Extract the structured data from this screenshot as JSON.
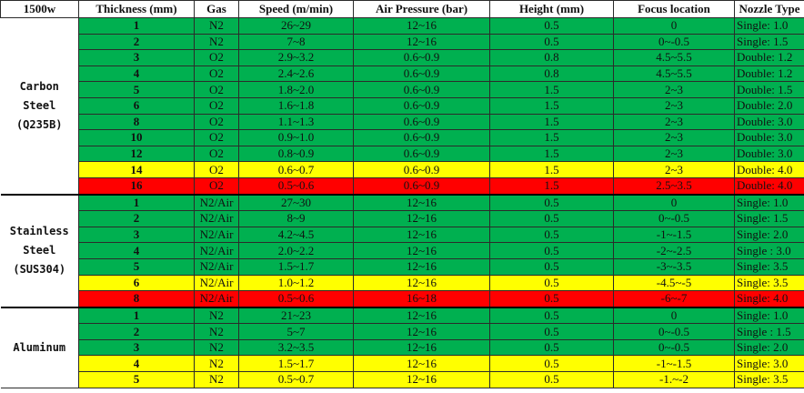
{
  "colors": {
    "green": "#00B050",
    "yellow": "#FFFF00",
    "red": "#FF0000"
  },
  "headers": [
    "1500w",
    "Thickness (mm)",
    "Gas",
    "Speed (m/min)",
    "Air Pressure (bar)",
    "Height (mm)",
    "Focus location",
    "Nozzle Type"
  ],
  "groups": [
    {
      "material": [
        "Carbon",
        "Steel",
        "(Q235B)"
      ],
      "rows": [
        {
          "status": "green",
          "cells": [
            "1",
            "N2",
            "26~29",
            "12~16",
            "0.5",
            "0",
            "Single: 1.0"
          ]
        },
        {
          "status": "green",
          "cells": [
            "2",
            "N2",
            "7~8",
            "12~16",
            "0.5",
            "0~-0.5",
            "Single: 1.5"
          ]
        },
        {
          "status": "green",
          "cells": [
            "3",
            "O2",
            "2.9~3.2",
            "0.6~0.9",
            "0.8",
            "4.5~5.5",
            "Double: 1.2"
          ]
        },
        {
          "status": "green",
          "cells": [
            "4",
            "O2",
            "2.4~2.6",
            "0.6~0.9",
            "0.8",
            "4.5~5.5",
            "Double: 1.2"
          ]
        },
        {
          "status": "green",
          "cells": [
            "5",
            "O2",
            "1.8~2.0",
            "0.6~0.9",
            "1.5",
            "2~3",
            "Double: 1.5"
          ]
        },
        {
          "status": "green",
          "cells": [
            "6",
            "O2",
            "1.6~1.8",
            "0.6~0.9",
            "1.5",
            "2~3",
            "Double: 2.0"
          ]
        },
        {
          "status": "green",
          "cells": [
            "8",
            "O2",
            "1.1~1.3",
            "0.6~0.9",
            "1.5",
            "2~3",
            "Double: 3.0"
          ]
        },
        {
          "status": "green",
          "cells": [
            "10",
            "O2",
            "0.9~1.0",
            "0.6~0.9",
            "1.5",
            "2~3",
            "Double: 3.0"
          ]
        },
        {
          "status": "green",
          "cells": [
            "12",
            "O2",
            "0.8~0.9",
            "0.6~0.9",
            "1.5",
            "2~3",
            "Double: 3.0"
          ]
        },
        {
          "status": "yellow",
          "cells": [
            "14",
            "O2",
            "0.6~0.7",
            "0.6~0.9",
            "1.5",
            "2~3",
            "Double: 4.0"
          ]
        },
        {
          "status": "red",
          "cells": [
            "16",
            "O2",
            "0.5~0.6",
            "0.6~0.9",
            "1.5",
            "2.5~3.5",
            "Double: 4.0"
          ]
        }
      ]
    },
    {
      "material": [
        "Stainless",
        "Steel",
        "(SUS304)"
      ],
      "rows": [
        {
          "status": "green",
          "cells": [
            "1",
            "N2/Air",
            "27~30",
            "12~16",
            "0.5",
            "0",
            "Single: 1.0"
          ]
        },
        {
          "status": "green",
          "cells": [
            "2",
            "N2/Air",
            "8~9",
            "12~16",
            "0.5",
            "0~-0.5",
            "Single: 1.5"
          ]
        },
        {
          "status": "green",
          "cells": [
            "3",
            "N2/Air",
            "4.2~4.5",
            "12~16",
            "0.5",
            "-1~-1.5",
            "Single: 2.0"
          ]
        },
        {
          "status": "green",
          "cells": [
            "4",
            "N2/Air",
            "2.0~2.2",
            "12~16",
            "0.5",
            "-2~-2.5",
            "Single : 3.0"
          ]
        },
        {
          "status": "green",
          "cells": [
            "5",
            "N2/Air",
            "1.5~1.7",
            "12~16",
            "0.5",
            "-3~-3.5",
            "Single: 3.5"
          ]
        },
        {
          "status": "yellow",
          "cells": [
            "6",
            "N2/Air",
            "1.0~1.2",
            "12~16",
            "0.5",
            "-4.5~-5",
            "Single: 3.5"
          ]
        },
        {
          "status": "red",
          "cells": [
            "8",
            "N2/Air",
            "0.5~0.6",
            "16~18",
            "0.5",
            "-6~-7",
            "Single: 4.0"
          ]
        }
      ]
    },
    {
      "material": [
        "Aluminum"
      ],
      "rows": [
        {
          "status": "green",
          "cells": [
            "1",
            "N2",
            "21~23",
            "12~16",
            "0.5",
            "0",
            "Single: 1.0"
          ]
        },
        {
          "status": "green",
          "cells": [
            "2",
            "N2",
            "5~7",
            "12~16",
            "0.5",
            "0~-0.5",
            "Single : 1.5"
          ]
        },
        {
          "status": "green",
          "cells": [
            "3",
            "N2",
            "3.2~3.5",
            "12~16",
            "0.5",
            "0~-0.5",
            "Single: 2.0"
          ]
        },
        {
          "status": "yellow",
          "cells": [
            "4",
            "N2",
            "1.5~1.7",
            "12~16",
            "0.5",
            "-1~-1.5",
            "Single: 3.0"
          ]
        },
        {
          "status": "yellow",
          "cells": [
            "5",
            "N2",
            "0.5~0.7",
            "12~16",
            "0.5",
            "-1.~-2",
            "Single: 3.5"
          ]
        }
      ]
    }
  ]
}
